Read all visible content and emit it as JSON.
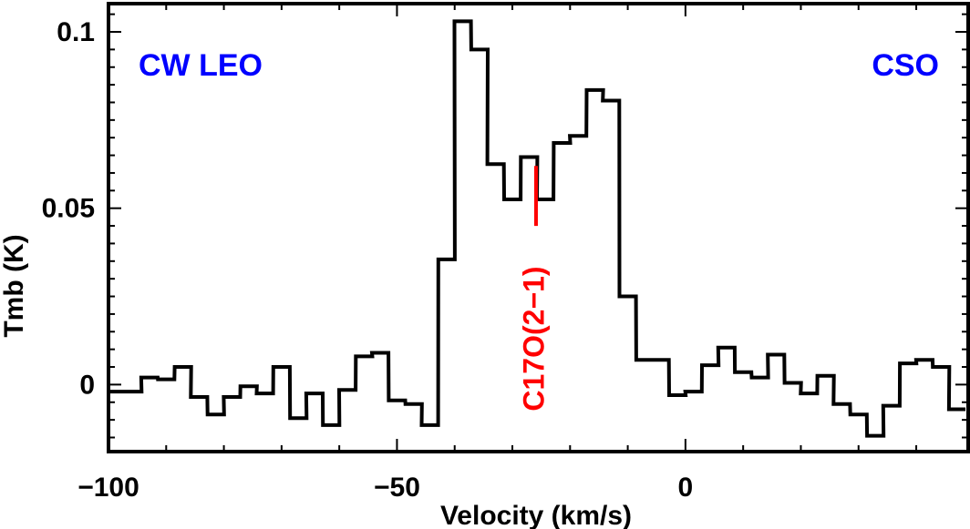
{
  "chart_data": {
    "type": "line",
    "style": "step",
    "xlabel": "Velocity (km/s)",
    "ylabel": "Tmb (K)",
    "xlim": [
      -100,
      49
    ],
    "ylim": [
      -0.019,
      0.108
    ],
    "x_ticks": [
      -100,
      -50,
      0
    ],
    "x_tick_labels": [
      "−100",
      "−50",
      "0"
    ],
    "y_ticks": [
      0,
      0.05,
      0.1
    ],
    "y_tick_labels": [
      "0",
      "0.05",
      "0.1"
    ],
    "grid": false,
    "annotations": [
      {
        "text": "CW LEO",
        "position": "top-left",
        "color": "#0000ff"
      },
      {
        "text": "CSO",
        "position": "top-right",
        "color": "#0000ff"
      },
      {
        "text": "C17O(2−1)",
        "x": -25.9,
        "line_y": [
          0.045,
          0.062
        ],
        "rotation": "vertical",
        "color": "#ff0000"
      }
    ],
    "series": [
      {
        "color": "#000000",
        "step_width": 2.86,
        "x": [
          -98.6,
          -95.7,
          -92.9,
          -90.0,
          -87.1,
          -84.3,
          -81.4,
          -78.6,
          -75.7,
          -72.9,
          -70.0,
          -67.1,
          -64.3,
          -61.4,
          -58.6,
          -55.7,
          -52.9,
          -50.0,
          -47.1,
          -44.3,
          -41.4,
          -38.6,
          -35.7,
          -32.9,
          -30.0,
          -27.1,
          -24.3,
          -21.4,
          -18.6,
          -15.7,
          -12.9,
          -10.0,
          -7.1,
          -4.3,
          -1.4,
          1.4,
          4.3,
          7.1,
          10.0,
          12.9,
          15.7,
          18.6,
          21.4,
          24.3,
          27.1,
          30.0,
          32.9,
          35.7,
          38.6,
          41.4,
          44.3,
          47.1
        ],
        "y": [
          -0.002,
          -0.002,
          0.002,
          0.0015,
          0.005,
          -0.0035,
          -0.0085,
          -0.0035,
          -0.0005,
          -0.0025,
          0.005,
          -0.0095,
          -0.0025,
          -0.0115,
          -0.0015,
          0.008,
          0.009,
          -0.0045,
          -0.0055,
          -0.0115,
          0.0355,
          0.103,
          0.095,
          0.0625,
          0.0525,
          0.0645,
          0.0525,
          0.0685,
          0.0705,
          0.0835,
          0.0805,
          0.025,
          0.007,
          0.007,
          -0.003,
          -0.002,
          0.0055,
          0.0105,
          0.0035,
          0.002,
          0.0085,
          0.0005,
          -0.0025,
          0.0025,
          -0.0055,
          -0.0085,
          -0.0145,
          -0.006,
          0.006,
          0.007,
          0.005,
          -0.007
        ]
      }
    ]
  }
}
